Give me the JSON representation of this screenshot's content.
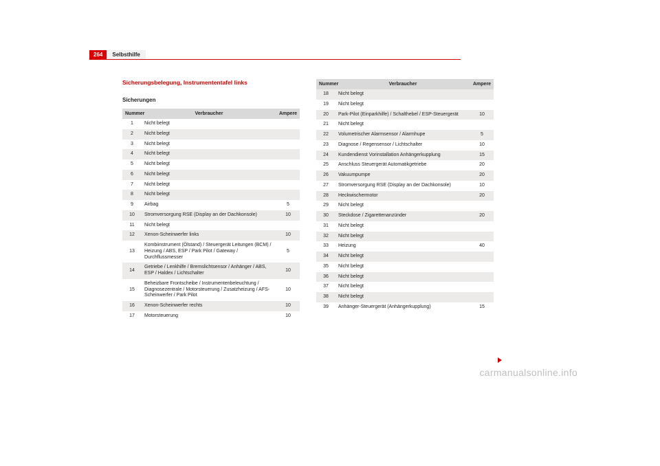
{
  "page": {
    "number": "264",
    "section": "Selbsthilfe",
    "title": "Sicherungsbelegung, Instrumententafel links",
    "subtitle": "Sicherungen",
    "watermark": "carmanualsonline.info"
  },
  "headers": {
    "num": "Nummer",
    "ver": "Verbraucher",
    "amp": "Ampere"
  },
  "left_rows": [
    {
      "n": "1",
      "v": "Nicht belegt",
      "a": ""
    },
    {
      "n": "2",
      "v": "Nicht belegt",
      "a": ""
    },
    {
      "n": "3",
      "v": "Nicht belegt",
      "a": ""
    },
    {
      "n": "4",
      "v": "Nicht belegt",
      "a": ""
    },
    {
      "n": "5",
      "v": "Nicht belegt",
      "a": ""
    },
    {
      "n": "6",
      "v": "Nicht belegt",
      "a": ""
    },
    {
      "n": "7",
      "v": "Nicht belegt",
      "a": ""
    },
    {
      "n": "8",
      "v": "Nicht belegt",
      "a": ""
    },
    {
      "n": "9",
      "v": "Airbag",
      "a": "5"
    },
    {
      "n": "10",
      "v": "Stromversorgung RSE (Display an der Dachkonsole)",
      "a": "10"
    },
    {
      "n": "11",
      "v": "Nicht belegt",
      "a": ""
    },
    {
      "n": "12",
      "v": "Xenon-Scheinwerfer links",
      "a": "10"
    },
    {
      "n": "13",
      "v": "Kombiinstrument (Ölstand) / Steuergerät Leitungen (BCM) / Heizung / ABS, ESP / Park Pilot / Gateway / Durchflussmesser",
      "a": "5"
    },
    {
      "n": "14",
      "v": "Getriebe / Lenkhilfe / Bremslichtsensor / Anhänger / ABS, ESP / Haldex / Lichtschalter",
      "a": "10"
    },
    {
      "n": "15",
      "v": "Beheizbare Frontscheibe / Instrumentenbeleuchtung / Diagnosezentrale / Motorsteuerung / Zusatzheizung / AFS-Scheinwerfer / Park Pilot",
      "a": "10"
    },
    {
      "n": "16",
      "v": "Xenon-Scheinwerfer rechts",
      "a": "10"
    },
    {
      "n": "17",
      "v": "Motorsteuerung",
      "a": "10"
    }
  ],
  "right_rows": [
    {
      "n": "18",
      "v": "Nicht belegt",
      "a": ""
    },
    {
      "n": "19",
      "v": "Nicht belegt",
      "a": ""
    },
    {
      "n": "20",
      "v": "Park-Pilot (Einparkhilfe) / Schalthebel / ESP-Steuergerät",
      "a": "10"
    },
    {
      "n": "21",
      "v": "Nicht belegt",
      "a": ""
    },
    {
      "n": "22",
      "v": "Volumetrischer Alarmsensor / Alarmhupe",
      "a": "5"
    },
    {
      "n": "23",
      "v": "Diagnose / Regensensor / Lichtschalter",
      "a": "10"
    },
    {
      "n": "24",
      "v": "Kundendienst Vorinstallation Anhängerkupplung",
      "a": "15"
    },
    {
      "n": "25",
      "v": "Anschluss Steuergerät Automatikgetriebe",
      "a": "20"
    },
    {
      "n": "26",
      "v": "Vakuumpumpe",
      "a": "20"
    },
    {
      "n": "27",
      "v": "Stromversorgung RSE (Display an der Dachkonsole)",
      "a": "10"
    },
    {
      "n": "28",
      "v": "Heckwischermotor",
      "a": "20"
    },
    {
      "n": "29",
      "v": "Nicht belegt",
      "a": ""
    },
    {
      "n": "30",
      "v": "Steckdose / Zigarettenanzünder",
      "a": "20"
    },
    {
      "n": "31",
      "v": "Nicht belegt",
      "a": ""
    },
    {
      "n": "32",
      "v": "Nicht belegt",
      "a": ""
    },
    {
      "n": "33",
      "v": "Heizung",
      "a": "40"
    },
    {
      "n": "34",
      "v": "Nicht belegt",
      "a": ""
    },
    {
      "n": "35",
      "v": "Nicht belegt",
      "a": ""
    },
    {
      "n": "36",
      "v": "Nicht belegt",
      "a": ""
    },
    {
      "n": "37",
      "v": "Nicht belegt",
      "a": ""
    },
    {
      "n": "38",
      "v": "Nicht belegt",
      "a": ""
    },
    {
      "n": "39",
      "v": "Anhänger-Steuergerät (Anhängerkupplung)",
      "a": "15"
    }
  ]
}
